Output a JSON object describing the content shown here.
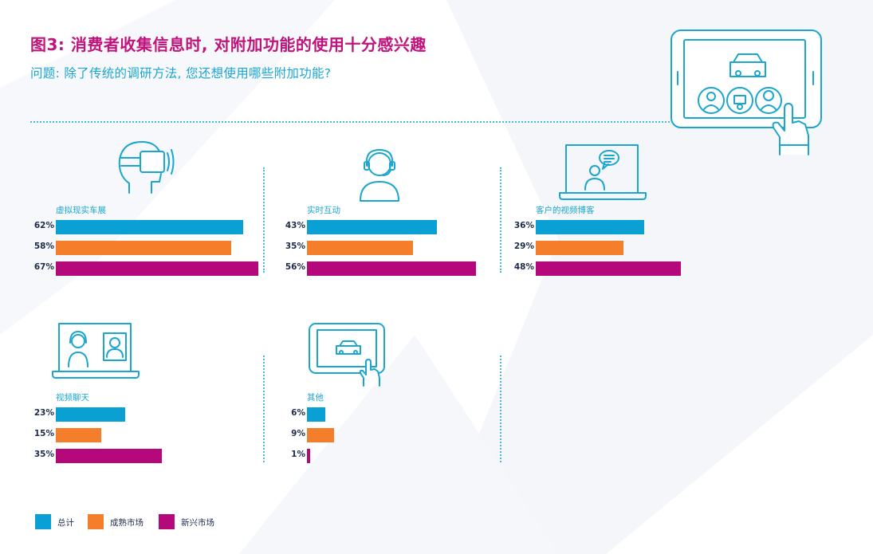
{
  "title": "图3: 消费者收集信息时, 对附加功能的使用十分感兴趣",
  "subtitle": "问题: 除了传统的调研方法, 您还想使用哪些附加功能?",
  "colors": {
    "total": "#0aa0d4",
    "mature": "#f47e2a",
    "emerging": "#b5087b",
    "accent": "#1aa6cf"
  },
  "chart_data": {
    "type": "bar",
    "orientation": "horizontal",
    "xlim": [
      0,
      100
    ],
    "unit": "%",
    "series_names": [
      "总计",
      "成熟市场",
      "新兴市场"
    ],
    "panels": [
      {
        "label": "虚拟现实车展",
        "icon": "vr-headset-icon",
        "values": [
          62,
          58,
          67
        ],
        "value_labels": [
          "62%",
          "58%",
          "67%"
        ]
      },
      {
        "label": "实时互动",
        "icon": "headset-agent-icon",
        "values": [
          43,
          35,
          56
        ],
        "value_labels": [
          "43%",
          "35%",
          "56%"
        ]
      },
      {
        "label": "客户的视频博客",
        "icon": "laptop-vlog-icon",
        "values": [
          36,
          29,
          48
        ],
        "value_labels": [
          "36%",
          "29%",
          "48%"
        ]
      },
      {
        "label": "视频聊天",
        "icon": "video-chat-icon",
        "values": [
          23,
          15,
          35
        ],
        "value_labels": [
          "23%",
          "15%",
          "35%"
        ]
      },
      {
        "label": "其他",
        "icon": "tablet-car-icon",
        "values": [
          6,
          9,
          1
        ],
        "value_labels": [
          "6%",
          "9%",
          "1%"
        ]
      }
    ]
  },
  "legend": [
    {
      "label": "总计",
      "color": "#0aa0d4"
    },
    {
      "label": "成熟市场",
      "color": "#f47e2a"
    },
    {
      "label": "新兴市场",
      "color": "#b5087b"
    }
  ]
}
